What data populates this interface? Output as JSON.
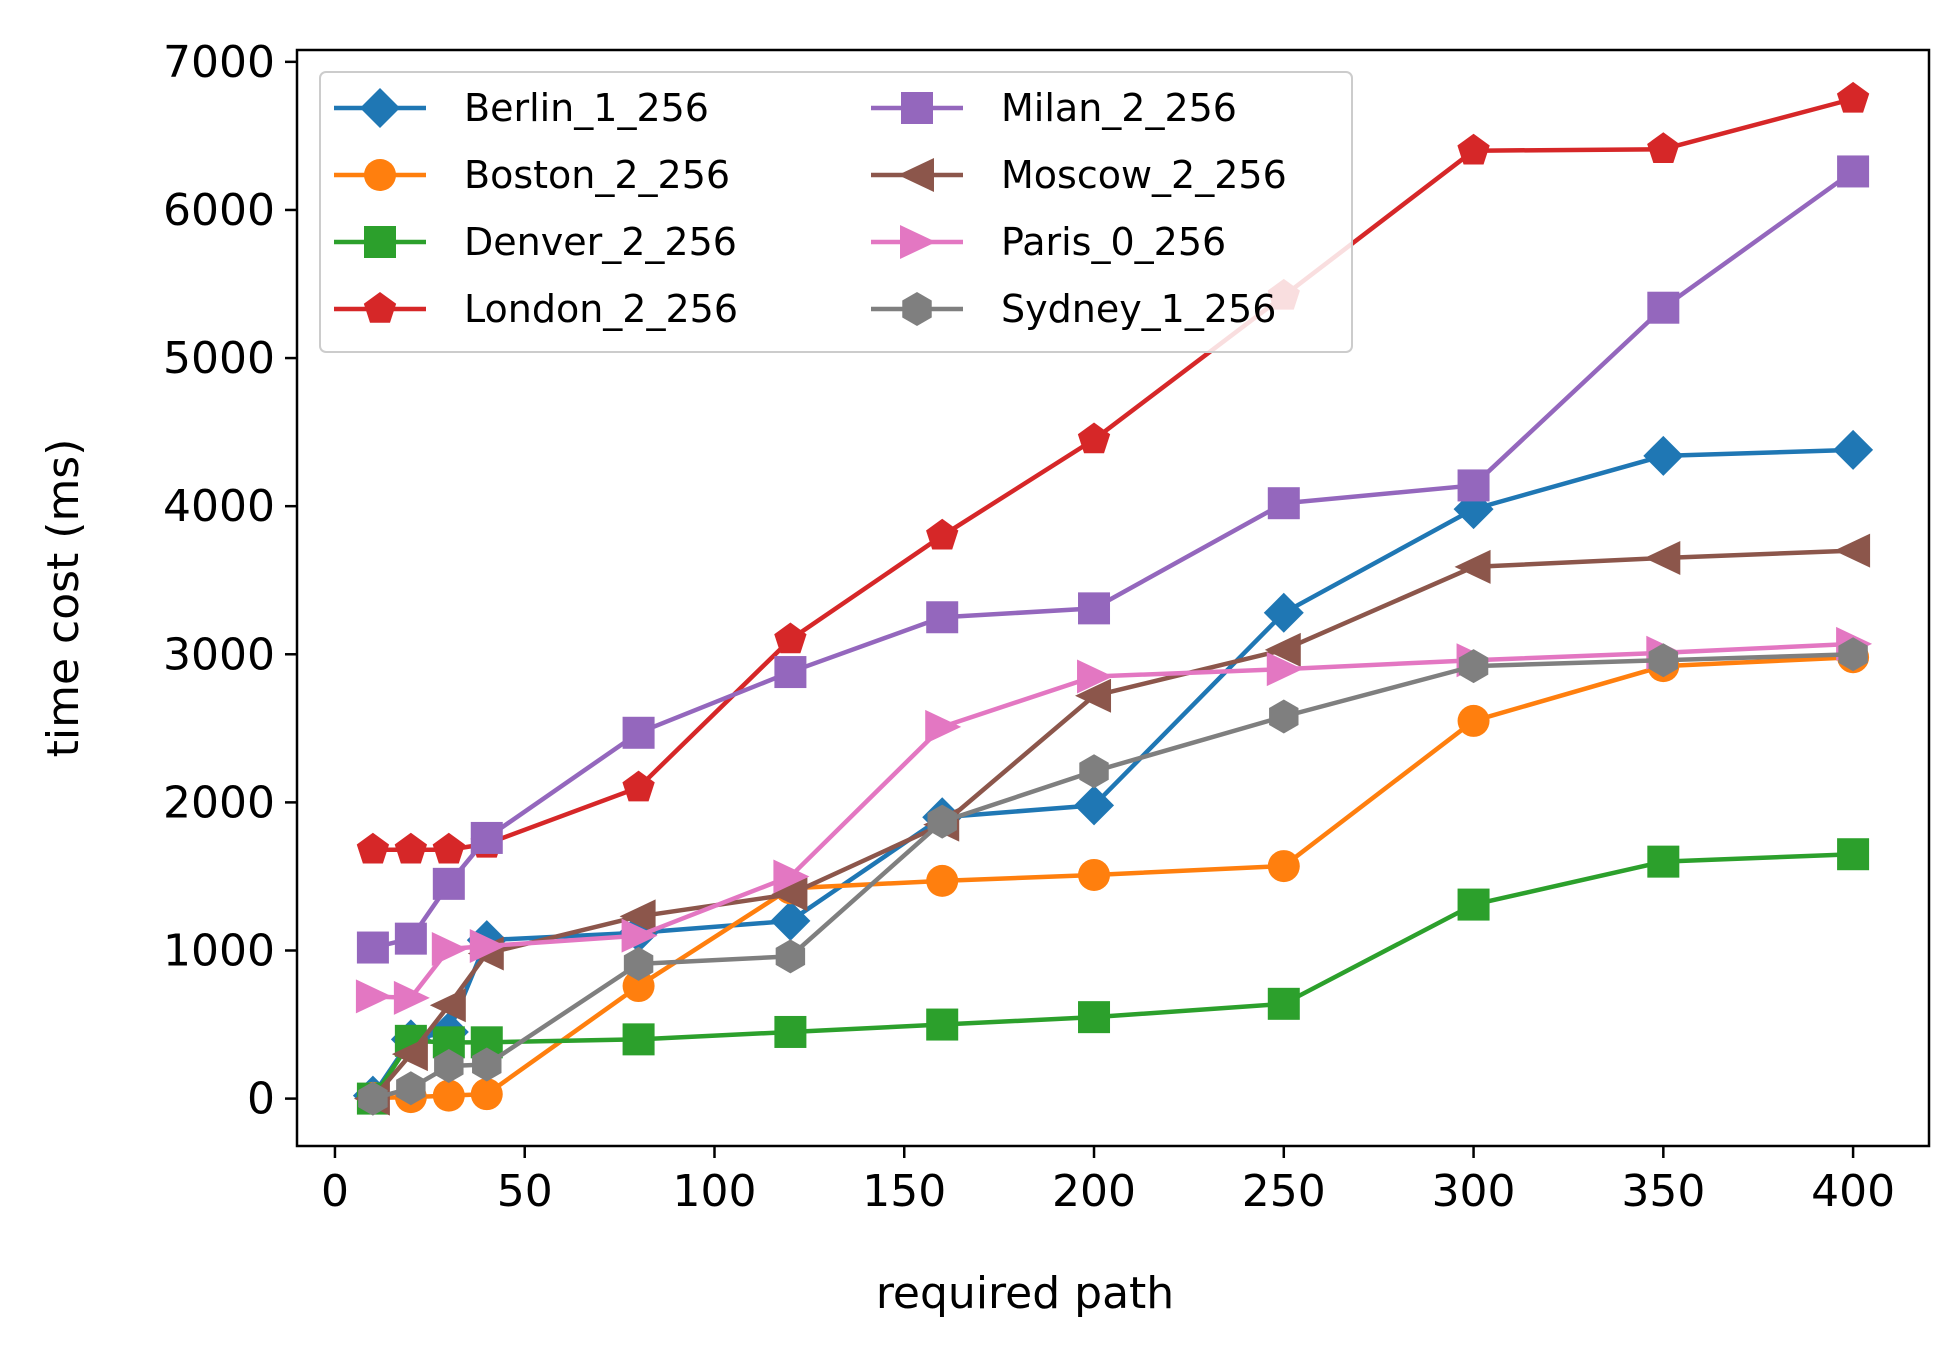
{
  "chart_data": {
    "type": "line",
    "title": "",
    "xlabel": "required path",
    "ylabel": "time cost (ms)",
    "xlim": [
      -10,
      420
    ],
    "ylim": [
      -320,
      7080
    ],
    "xticks": [
      0,
      50,
      100,
      150,
      200,
      250,
      300,
      350,
      400
    ],
    "yticks": [
      0,
      1000,
      2000,
      3000,
      4000,
      5000,
      6000,
      7000
    ],
    "grid": false,
    "legend_position": "top-left",
    "legend_columns": 2,
    "series": [
      {
        "name": "Berlin_1_256",
        "color": "#1f77b4",
        "marker": "diamond",
        "x": [
          10,
          20,
          30,
          40,
          80,
          120,
          160,
          200,
          250,
          300,
          350,
          400
        ],
        "y": [
          20,
          400,
          450,
          1070,
          1120,
          1200,
          1900,
          1980,
          3280,
          3980,
          4340,
          4380
        ]
      },
      {
        "name": "Boston_2_256",
        "color": "#ff7f0e",
        "marker": "circle",
        "x": [
          10,
          20,
          30,
          40,
          80,
          120,
          160,
          200,
          250,
          300,
          350,
          400
        ],
        "y": [
          5,
          10,
          20,
          30,
          760,
          1420,
          1470,
          1510,
          1570,
          2550,
          2920,
          2980
        ]
      },
      {
        "name": "Denver_2_256",
        "color": "#2ca02c",
        "marker": "square",
        "x": [
          10,
          20,
          30,
          40,
          80,
          120,
          160,
          200,
          250,
          300,
          350,
          400
        ],
        "y": [
          0,
          390,
          380,
          380,
          400,
          450,
          500,
          550,
          640,
          1310,
          1600,
          1650
        ]
      },
      {
        "name": "London_2_256",
        "color": "#d62728",
        "marker": "pentagon",
        "x": [
          10,
          20,
          30,
          40,
          80,
          120,
          160,
          200,
          250,
          300,
          350,
          400
        ],
        "y": [
          1680,
          1680,
          1680,
          1720,
          2100,
          3100,
          3800,
          4450,
          5420,
          6400,
          6410,
          6750
        ]
      },
      {
        "name": "Milan_2_256",
        "color": "#9467bd",
        "marker": "square",
        "x": [
          10,
          20,
          30,
          40,
          80,
          120,
          160,
          200,
          250,
          300,
          350,
          400
        ],
        "y": [
          1020,
          1080,
          1450,
          1760,
          2470,
          2880,
          3250,
          3310,
          4020,
          4140,
          5340,
          6260
        ]
      },
      {
        "name": "Moscow_2_256",
        "color": "#8c564b",
        "marker": "triangle-left",
        "x": [
          10,
          20,
          30,
          40,
          80,
          120,
          160,
          200,
          250,
          300,
          350,
          400
        ],
        "y": [
          0,
          300,
          630,
          980,
          1230,
          1380,
          1850,
          2720,
          3030,
          3590,
          3650,
          3700
        ]
      },
      {
        "name": "Paris_0_256",
        "color": "#e377c2",
        "marker": "triangle-right",
        "x": [
          10,
          20,
          30,
          40,
          80,
          120,
          160,
          200,
          250,
          300,
          350,
          400
        ],
        "y": [
          690,
          680,
          1010,
          1030,
          1100,
          1500,
          2510,
          2850,
          2900,
          2960,
          3010,
          3070
        ]
      },
      {
        "name": "Sydney_1_256",
        "color": "#7f7f7f",
        "marker": "hexagon",
        "x": [
          10,
          20,
          30,
          40,
          80,
          120,
          160,
          200,
          250,
          300,
          350,
          400
        ],
        "y": [
          0,
          70,
          220,
          230,
          910,
          960,
          1870,
          2210,
          2580,
          2920,
          2960,
          3000
        ]
      }
    ]
  }
}
